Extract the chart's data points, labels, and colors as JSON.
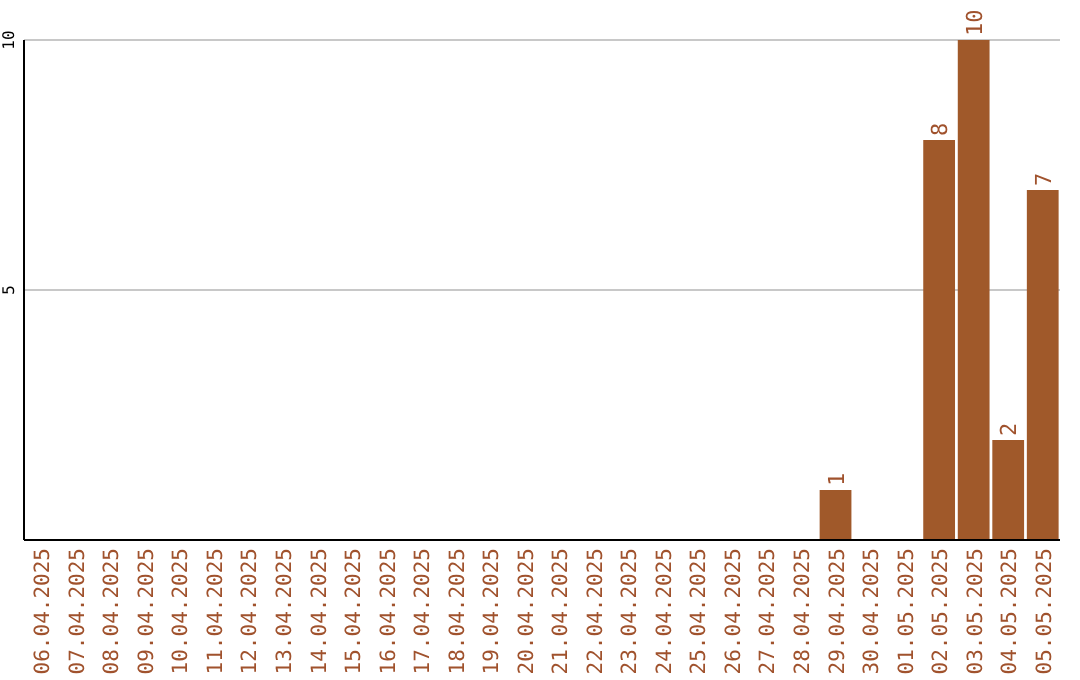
{
  "chart_data": {
    "type": "bar",
    "categories": [
      "06.04.2025",
      "07.04.2025",
      "08.04.2025",
      "09.04.2025",
      "10.04.2025",
      "11.04.2025",
      "12.04.2025",
      "13.04.2025",
      "14.04.2025",
      "15.04.2025",
      "16.04.2025",
      "17.04.2025",
      "18.04.2025",
      "19.04.2025",
      "20.04.2025",
      "21.04.2025",
      "22.04.2025",
      "23.04.2025",
      "24.04.2025",
      "25.04.2025",
      "26.04.2025",
      "27.04.2025",
      "28.04.2025",
      "29.04.2025",
      "30.04.2025",
      "01.05.2025",
      "02.05.2025",
      "03.05.2025",
      "04.05.2025",
      "05.05.2025"
    ],
    "values": [
      0,
      0,
      0,
      0,
      0,
      0,
      0,
      0,
      0,
      0,
      0,
      0,
      0,
      0,
      0,
      0,
      0,
      0,
      0,
      0,
      0,
      0,
      0,
      1,
      0,
      0,
      8,
      10,
      2,
      7
    ],
    "value_labels": [
      null,
      null,
      null,
      null,
      null,
      null,
      null,
      null,
      null,
      null,
      null,
      null,
      null,
      null,
      null,
      null,
      null,
      null,
      null,
      null,
      null,
      null,
      null,
      "1",
      null,
      null,
      "8",
      "10",
      "2",
      "7"
    ],
    "color": "#a0592a",
    "ylim": [
      0,
      10
    ],
    "yticks": [
      5,
      10
    ],
    "grid": "y"
  }
}
